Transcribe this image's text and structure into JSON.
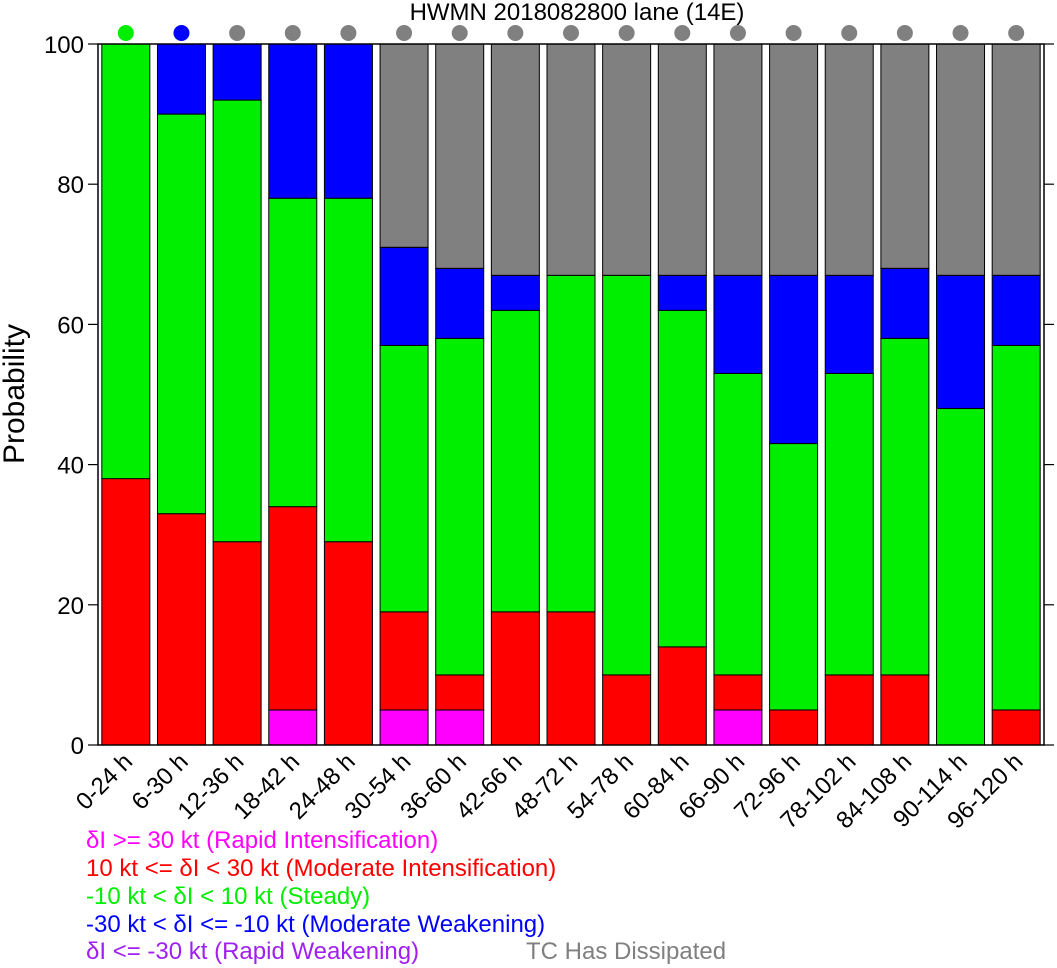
{
  "chart_data": {
    "type": "bar",
    "stacked": true,
    "title": "HWMN 2018082800 lane (14E)",
    "xlabel": "",
    "ylabel": "Probability",
    "ylim": [
      0,
      100
    ],
    "yticks": [
      "0",
      "20",
      "40",
      "60",
      "80",
      "100"
    ],
    "categories": [
      "0-24 h",
      "6-30 h",
      "12-36 h",
      "18-42 h",
      "24-48 h",
      "30-54 h",
      "36-60 h",
      "42-66 h",
      "48-72 h",
      "54-78 h",
      "60-84 h",
      "66-90 h",
      "72-96 h",
      "78-102 h",
      "84-108 h",
      "90-114 h",
      "96-120 h"
    ],
    "series": [
      {
        "key": "ri",
        "color": "#ff00ff",
        "values": [
          0,
          0,
          0,
          5,
          0,
          5,
          5,
          0,
          0,
          0,
          0,
          5,
          0,
          0,
          0,
          0,
          0
        ]
      },
      {
        "key": "mi",
        "color": "#ff0000",
        "values": [
          38,
          33,
          29,
          29,
          29,
          14,
          5,
          19,
          19,
          10,
          14,
          5,
          5,
          10,
          10,
          0,
          5
        ]
      },
      {
        "key": "steady",
        "color": "#00ee00",
        "values": [
          62,
          57,
          63,
          44,
          49,
          38,
          48,
          43,
          48,
          57,
          48,
          43,
          38,
          43,
          48,
          48,
          52
        ]
      },
      {
        "key": "mw",
        "color": "#0000ff",
        "values": [
          0,
          10,
          8,
          22,
          22,
          14,
          10,
          5,
          0,
          0,
          5,
          14,
          24,
          14,
          10,
          19,
          10
        ]
      },
      {
        "key": "rw",
        "color": "#a020f0",
        "values": [
          0,
          0,
          0,
          0,
          0,
          0,
          0,
          0,
          0,
          0,
          0,
          0,
          0,
          0,
          0,
          0,
          0
        ]
      },
      {
        "key": "dissipated",
        "color": "#808080",
        "values": [
          0,
          0,
          0,
          0,
          0,
          29,
          32,
          33,
          33,
          33,
          33,
          33,
          33,
          33,
          32,
          33,
          33
        ]
      }
    ],
    "top_markers": [
      "#00ee00",
      "#0000ff",
      "#808080",
      "#808080",
      "#808080",
      "#808080",
      "#808080",
      "#808080",
      "#808080",
      "#808080",
      "#808080",
      "#808080",
      "#808080",
      "#808080",
      "#808080",
      "#808080",
      "#808080"
    ],
    "legend": [
      {
        "text": "δI >= 30 kt (Rapid Intensification)",
        "color": "#ff00ff"
      },
      {
        "text": "10 kt <= δI < 30 kt (Moderate Intensification)",
        "color": "#ff0000"
      },
      {
        "text": "-10 kt < δI < 10 kt (Steady)",
        "color": "#00ee00"
      },
      {
        "text": "-30 kt < δI <= -10 kt (Moderate Weakening)",
        "color": "#0000ff"
      },
      {
        "text": "δI <= -30 kt (Rapid Weakening)",
        "color": "#a020f0"
      },
      {
        "text": "TC Has Dissipated",
        "color": "#808080"
      }
    ]
  }
}
